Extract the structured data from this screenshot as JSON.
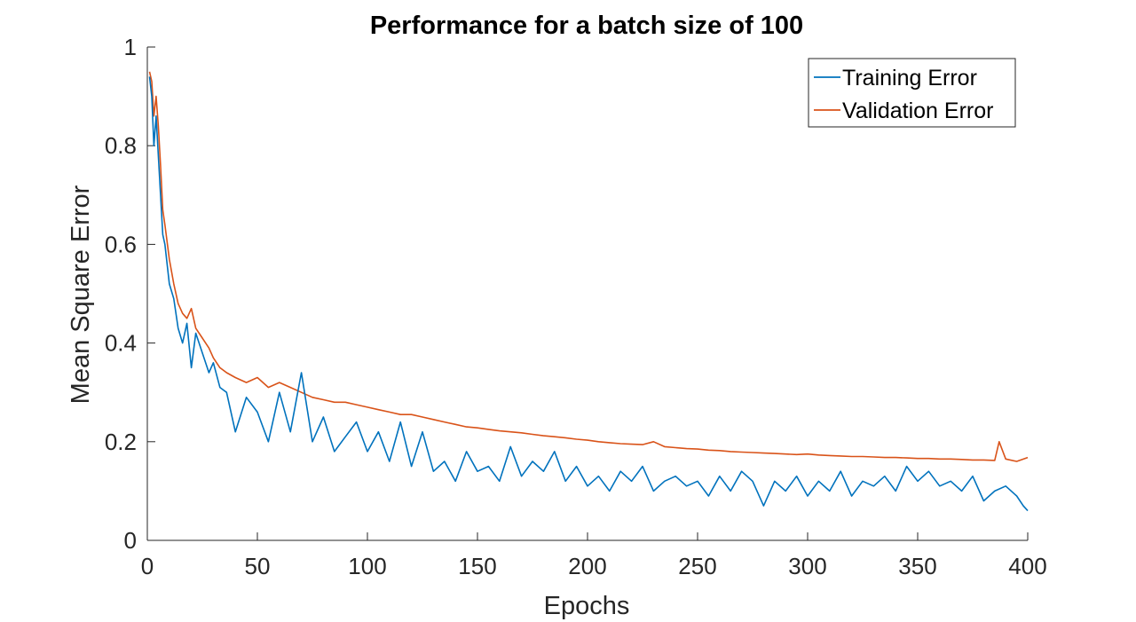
{
  "chart_data": {
    "type": "line",
    "title": "Performance for a batch size of 100",
    "xlabel": "Epochs",
    "ylabel": "Mean Square Error",
    "xlim": [
      0,
      400
    ],
    "ylim": [
      0,
      1
    ],
    "xticks": [
      0,
      50,
      100,
      150,
      200,
      250,
      300,
      350,
      400
    ],
    "xtick_labels": [
      "0",
      "50",
      "100",
      "150",
      "200",
      "250",
      "300",
      "350",
      "400"
    ],
    "yticks": [
      0,
      0.2,
      0.4,
      0.6,
      0.8,
      1
    ],
    "ytick_labels": [
      "0",
      "0.2",
      "0.4",
      "0.6",
      "0.8",
      "1"
    ],
    "grid": false,
    "legend_position": "top-right",
    "series": [
      {
        "name": "Training Error",
        "color": "#0072BD",
        "x": [
          1,
          2,
          3,
          4,
          5,
          6,
          7,
          8,
          10,
          12,
          14,
          16,
          18,
          20,
          22,
          25,
          28,
          30,
          33,
          36,
          40,
          45,
          50,
          55,
          60,
          65,
          70,
          75,
          80,
          85,
          90,
          95,
          100,
          105,
          110,
          115,
          120,
          125,
          130,
          135,
          140,
          145,
          150,
          155,
          160,
          165,
          170,
          175,
          180,
          185,
          190,
          195,
          200,
          205,
          210,
          215,
          220,
          225,
          230,
          235,
          240,
          245,
          250,
          255,
          260,
          265,
          270,
          275,
          280,
          285,
          290,
          295,
          300,
          305,
          310,
          315,
          320,
          325,
          330,
          335,
          340,
          345,
          350,
          355,
          360,
          365,
          370,
          375,
          380,
          385,
          390,
          395,
          398,
          400
        ],
        "y": [
          0.94,
          0.9,
          0.8,
          0.86,
          0.78,
          0.7,
          0.62,
          0.6,
          0.52,
          0.49,
          0.43,
          0.4,
          0.44,
          0.35,
          0.42,
          0.38,
          0.34,
          0.36,
          0.31,
          0.3,
          0.22,
          0.29,
          0.26,
          0.2,
          0.3,
          0.22,
          0.34,
          0.2,
          0.25,
          0.18,
          0.21,
          0.24,
          0.18,
          0.22,
          0.16,
          0.24,
          0.15,
          0.22,
          0.14,
          0.16,
          0.12,
          0.18,
          0.14,
          0.15,
          0.12,
          0.19,
          0.13,
          0.16,
          0.14,
          0.18,
          0.12,
          0.15,
          0.11,
          0.13,
          0.1,
          0.14,
          0.12,
          0.15,
          0.1,
          0.12,
          0.13,
          0.11,
          0.12,
          0.09,
          0.13,
          0.1,
          0.14,
          0.12,
          0.07,
          0.12,
          0.1,
          0.13,
          0.09,
          0.12,
          0.1,
          0.14,
          0.09,
          0.12,
          0.11,
          0.13,
          0.1,
          0.15,
          0.12,
          0.14,
          0.11,
          0.12,
          0.1,
          0.13,
          0.08,
          0.1,
          0.11,
          0.09,
          0.07,
          0.06
        ]
      },
      {
        "name": "Validation Error",
        "color": "#D95319",
        "x": [
          1,
          2,
          3,
          4,
          5,
          6,
          7,
          8,
          10,
          12,
          14,
          16,
          18,
          20,
          22,
          25,
          28,
          30,
          33,
          36,
          40,
          45,
          50,
          55,
          60,
          65,
          70,
          75,
          80,
          85,
          90,
          95,
          100,
          105,
          110,
          115,
          120,
          125,
          130,
          135,
          140,
          145,
          150,
          155,
          160,
          165,
          170,
          175,
          180,
          185,
          190,
          195,
          200,
          205,
          210,
          215,
          220,
          225,
          230,
          235,
          240,
          245,
          250,
          255,
          260,
          265,
          270,
          275,
          280,
          285,
          290,
          295,
          300,
          305,
          310,
          315,
          320,
          325,
          330,
          335,
          340,
          345,
          350,
          355,
          360,
          365,
          370,
          375,
          380,
          385,
          387,
          390,
          395,
          400
        ],
        "y": [
          0.95,
          0.93,
          0.86,
          0.9,
          0.84,
          0.76,
          0.67,
          0.64,
          0.57,
          0.52,
          0.48,
          0.46,
          0.45,
          0.47,
          0.43,
          0.41,
          0.39,
          0.37,
          0.35,
          0.34,
          0.33,
          0.32,
          0.33,
          0.31,
          0.32,
          0.31,
          0.3,
          0.29,
          0.285,
          0.28,
          0.28,
          0.275,
          0.27,
          0.265,
          0.26,
          0.255,
          0.255,
          0.25,
          0.245,
          0.24,
          0.235,
          0.23,
          0.228,
          0.225,
          0.222,
          0.22,
          0.218,
          0.215,
          0.212,
          0.21,
          0.208,
          0.205,
          0.203,
          0.2,
          0.198,
          0.196,
          0.195,
          0.194,
          0.2,
          0.19,
          0.188,
          0.186,
          0.185,
          0.183,
          0.182,
          0.18,
          0.179,
          0.178,
          0.177,
          0.176,
          0.175,
          0.174,
          0.175,
          0.173,
          0.172,
          0.171,
          0.17,
          0.17,
          0.169,
          0.168,
          0.168,
          0.167,
          0.166,
          0.166,
          0.165,
          0.165,
          0.164,
          0.163,
          0.163,
          0.162,
          0.2,
          0.165,
          0.16,
          0.168
        ]
      }
    ]
  }
}
